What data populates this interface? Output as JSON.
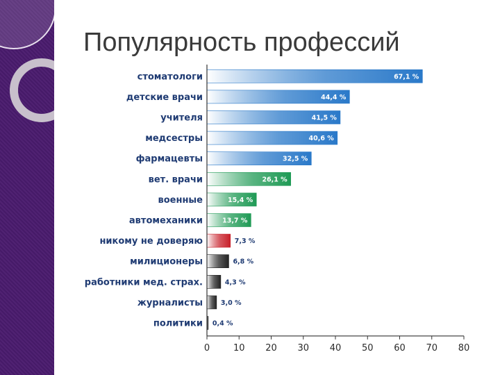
{
  "slide": {
    "title": "Популярность профессий"
  },
  "chart_data": {
    "type": "bar",
    "orientation": "horizontal",
    "categories": [
      "стоматологи",
      "детские врачи",
      "учителя",
      "медсестры",
      "фармацевты",
      "вет. врачи",
      "военные",
      "автомеханики",
      "никому не доверяю",
      "милиционеры",
      "работники мед. страх.",
      "журналисты",
      "политики"
    ],
    "values": [
      67.1,
      44.4,
      41.5,
      40.6,
      32.5,
      26.1,
      15.4,
      13.7,
      7.3,
      6.8,
      4.3,
      3.0,
      0.4
    ],
    "value_labels": [
      "67,1 %",
      "44,4 %",
      "41,5 %",
      "40,6 %",
      "32,5 %",
      "26,1 %",
      "15,4 %",
      "13,7 %",
      "7,3 %",
      "6,8 %",
      "4,3 %",
      "3,0 %",
      "0,4 %"
    ],
    "x_ticks": [
      "0",
      "10",
      "20",
      "30",
      "40",
      "50",
      "60",
      "70",
      "80"
    ],
    "xlim": [
      0,
      80
    ],
    "bar_colors": [
      "#2a79c9",
      "#2a79c9",
      "#2a79c9",
      "#2a79c9",
      "#2a79c9",
      "#1f9a55",
      "#1f9a55",
      "#1f9a55",
      "#c8202a",
      "#222222",
      "#222222",
      "#222222",
      "#222222"
    ],
    "colors": {
      "sidebar": "#4a1b6e",
      "category_text": "#1f3b73"
    }
  }
}
